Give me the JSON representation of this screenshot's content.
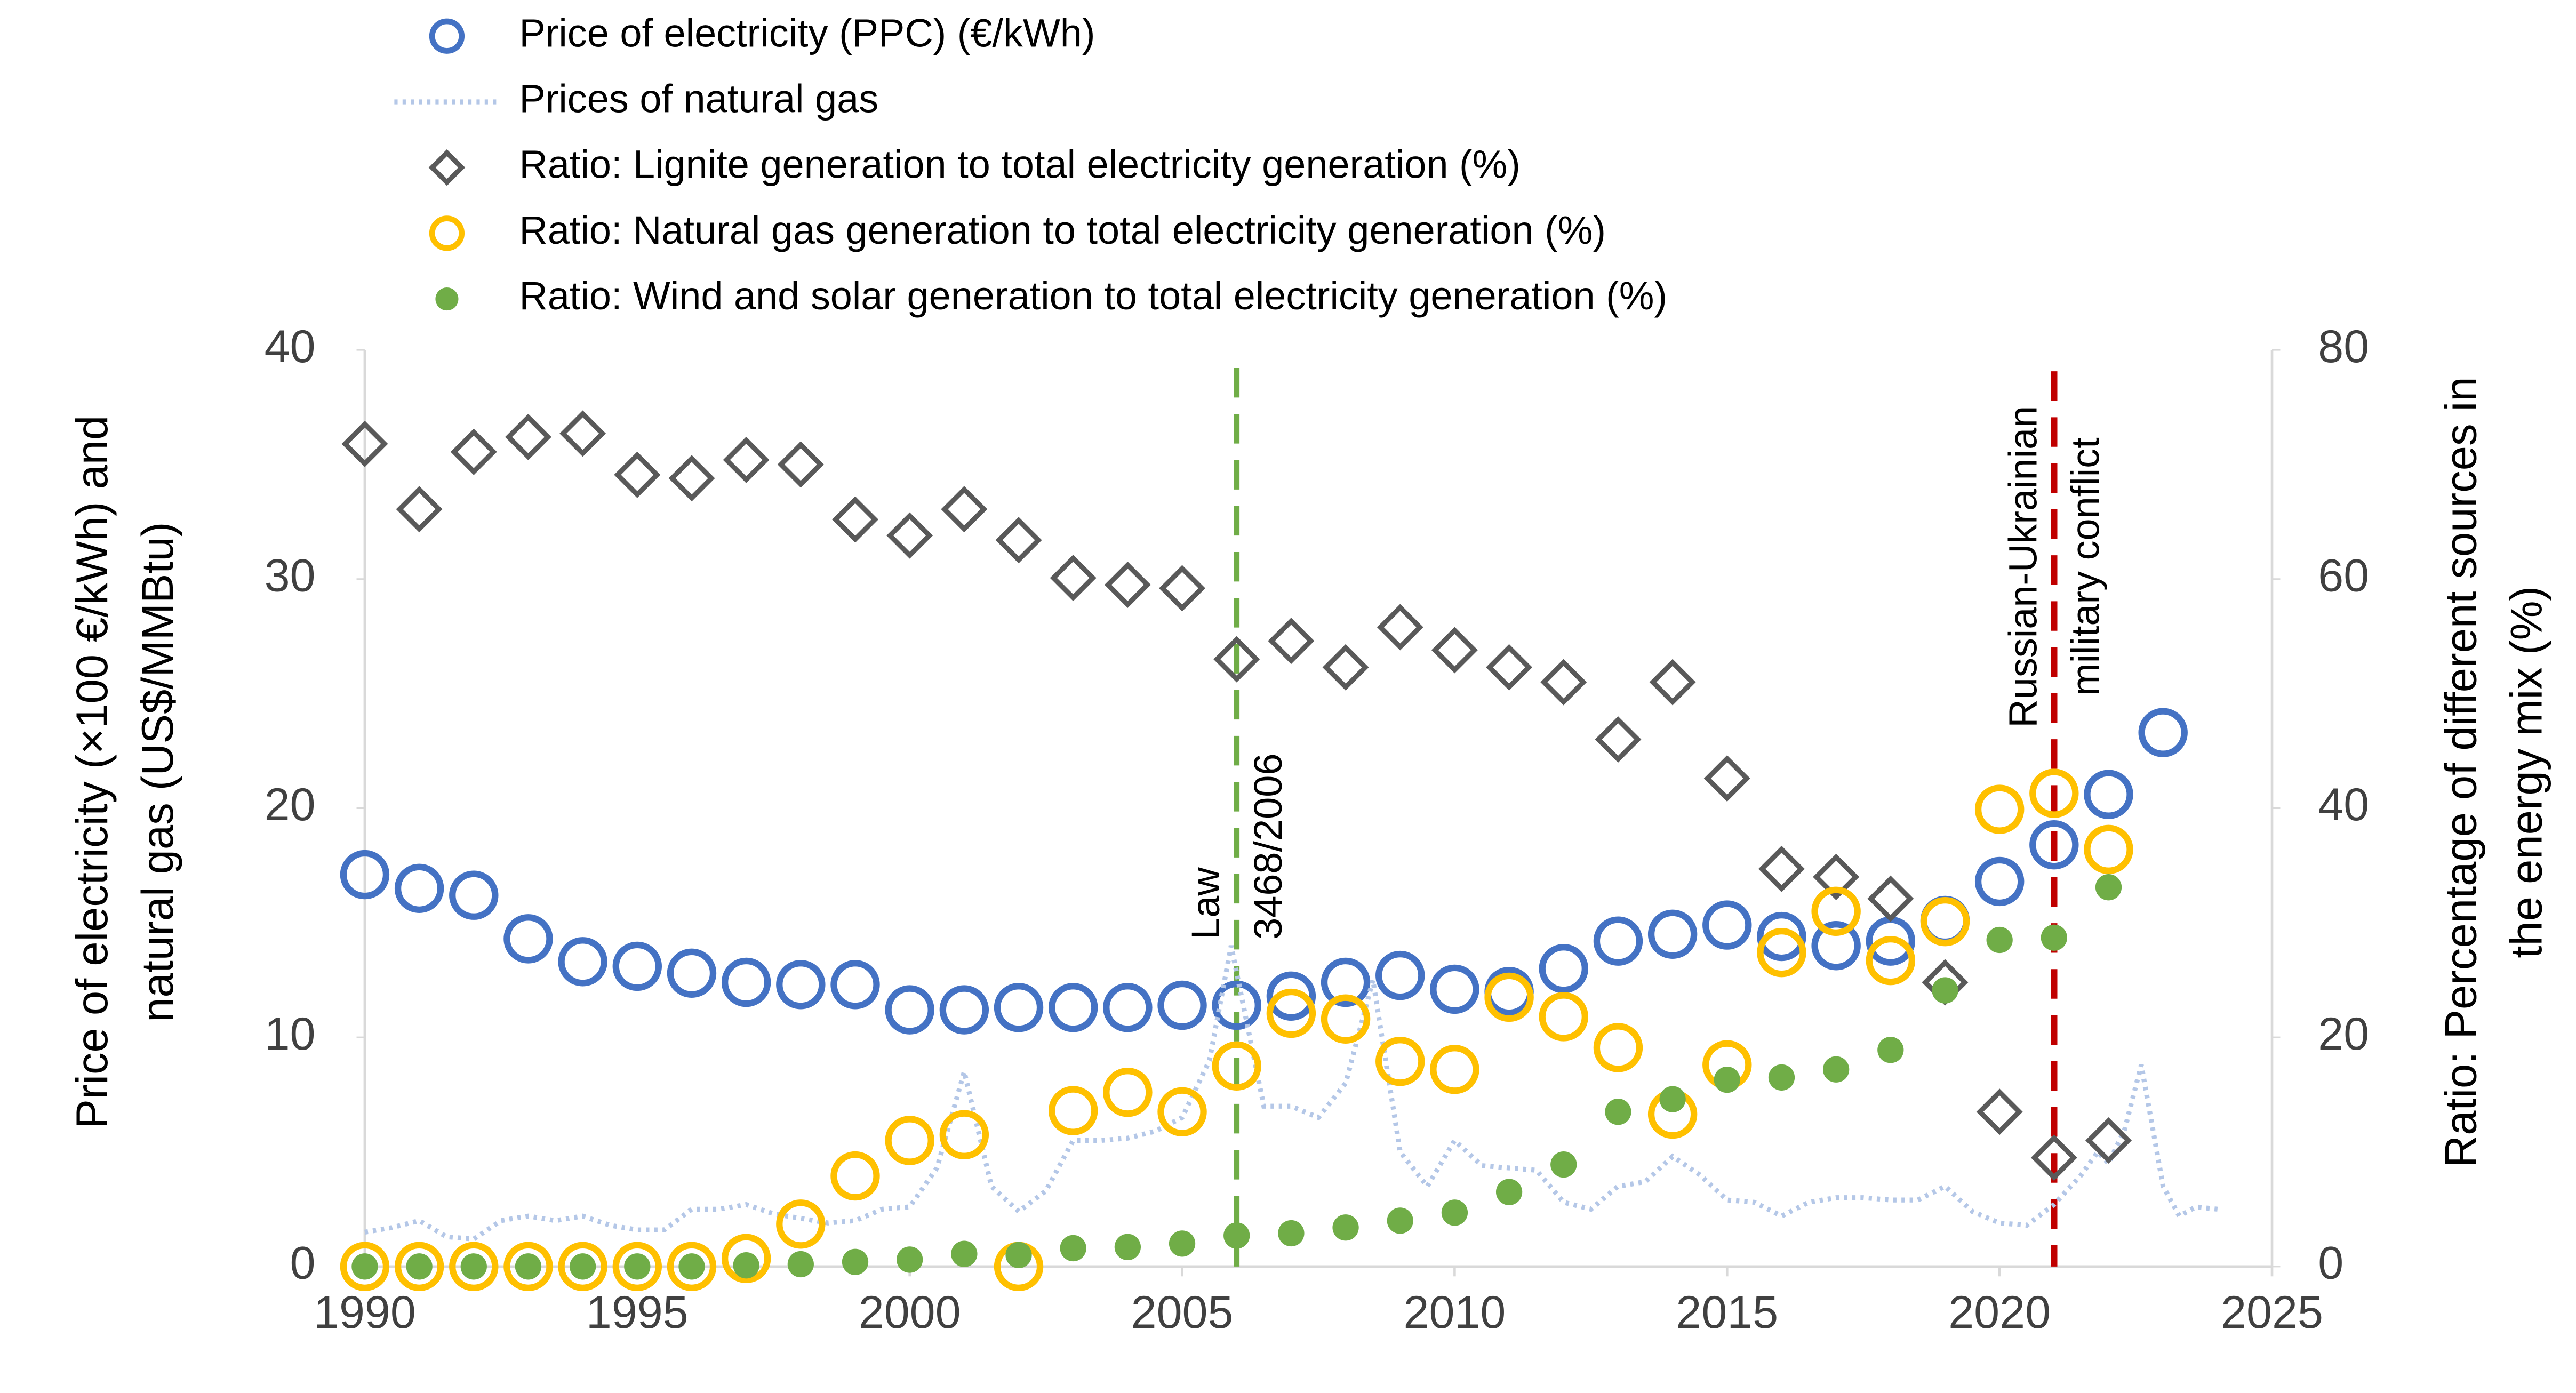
{
  "chart_data": {
    "type": "scatter",
    "x": [
      1990,
      1991,
      1992,
      1993,
      1994,
      1995,
      1996,
      1997,
      1998,
      1999,
      2000,
      2001,
      2002,
      2003,
      2004,
      2005,
      2006,
      2007,
      2008,
      2009,
      2010,
      2011,
      2012,
      2013,
      2014,
      2015,
      2016,
      2017,
      2018,
      2019,
      2020,
      2021,
      2022,
      2023
    ],
    "xlim": [
      1990,
      2025
    ],
    "xticks": [
      1990,
      1995,
      2000,
      2005,
      2010,
      2015,
      2020,
      2025
    ],
    "ylim": [
      0,
      40
    ],
    "yticks": [
      0,
      10,
      20,
      30,
      40
    ],
    "y2lim": [
      0,
      80
    ],
    "y2ticks": [
      0,
      20,
      40,
      60,
      80
    ],
    "grid": false,
    "ylabel": [
      "Price of electricity (×100 €/kWh) and",
      "natural gas (US$/MMBtu)"
    ],
    "y2label": [
      "Ratio: Percentage of different sources in",
      "the energy mix (%)"
    ],
    "series": [
      {
        "name": "Price of electricity (PPC) (€/kWh)",
        "color": "#4472c4",
        "marker": "circle-open",
        "values": [
          17.1,
          16.5,
          16.2,
          14.3,
          13.3,
          13.1,
          12.8,
          12.4,
          12.3,
          12.3,
          11.2,
          11.2,
          11.3,
          11.3,
          11.3,
          11.4,
          11.4,
          11.8,
          12.4,
          12.7,
          12.1,
          12.0,
          13.0,
          14.2,
          14.5,
          14.9,
          14.4,
          14.0,
          14.2,
          15.1,
          16.8,
          18.4,
          20.6,
          23.3
        ]
      },
      {
        "name": "Prices of natural gas",
        "color": "#b4c7e7",
        "marker": "line-dotted",
        "x": [
          1990,
          1990.5,
          1991,
          1991.5,
          1992,
          1992.5,
          1993,
          1993.5,
          1994,
          1994.5,
          1995,
          1995.5,
          1996,
          1996.5,
          1997,
          1997.5,
          1998,
          1998.5,
          1999,
          1999.5,
          2000,
          2000.5,
          2001,
          2001.5,
          2002,
          2002.5,
          2003,
          2003.5,
          2004,
          2004.5,
          2005,
          2005.5,
          2005.9,
          2006.5,
          2007,
          2007.5,
          2008,
          2008.5,
          2009,
          2009.5,
          2010,
          2010.5,
          2011,
          2011.5,
          2012,
          2012.5,
          2013,
          2013.5,
          2014,
          2014.5,
          2015,
          2015.5,
          2016,
          2016.5,
          2017,
          2017.5,
          2018,
          2018.5,
          2019,
          2019.5,
          2020,
          2020.5,
          2021,
          2021.5,
          2021.8,
          2022,
          2022.3,
          2022.6,
          2023,
          2023.3,
          2023.6,
          2024
        ],
        "values": [
          1.5,
          1.7,
          2.0,
          1.3,
          1.2,
          2.0,
          2.2,
          2.0,
          2.2,
          1.8,
          1.6,
          1.6,
          2.5,
          2.5,
          2.7,
          2.3,
          2.1,
          1.9,
          2.0,
          2.5,
          2.6,
          4.3,
          8.5,
          3.5,
          2.4,
          3.3,
          5.5,
          5.5,
          5.6,
          5.9,
          6.5,
          9.0,
          14.0,
          7.0,
          7.0,
          6.5,
          8.0,
          12.5,
          5.0,
          3.5,
          5.5,
          4.4,
          4.3,
          4.2,
          2.8,
          2.5,
          3.5,
          3.7,
          4.8,
          4.0,
          2.9,
          2.8,
          2.2,
          2.8,
          3.0,
          3.0,
          2.9,
          2.9,
          3.5,
          2.4,
          1.9,
          1.8,
          2.7,
          4.0,
          5.0,
          4.5,
          6.0,
          8.8,
          3.5,
          2.2,
          2.6,
          2.5
        ]
      },
      {
        "name": "Ratio: Lignite generation to total electricity generation (%)",
        "color": "#595959",
        "marker": "diamond-open",
        "axis": "y2",
        "values": [
          71.8,
          66.1,
          71.1,
          72.4,
          72.7,
          69.1,
          68.8,
          70.4,
          70.0,
          65.2,
          63.8,
          66.1,
          63.4,
          60.1,
          59.5,
          59.2,
          53.0,
          54.6,
          52.3,
          55.8,
          53.8,
          52.3,
          51.0,
          46.0,
          51.0,
          42.6,
          34.7,
          34.0,
          32.1,
          24.8,
          13.5,
          9.5,
          11.0,
          null
        ]
      },
      {
        "name": "Ratio: Natural gas generation to total electricity generation (%)",
        "color": "#ffc000",
        "marker": "circle-open",
        "axis": "y2",
        "values": [
          0,
          0,
          0,
          0,
          0,
          0,
          0,
          0.7,
          3.7,
          7.9,
          11.0,
          11.5,
          0,
          13.6,
          15.2,
          13.5,
          17.5,
          22.1,
          21.6,
          17.9,
          17.2,
          23.5,
          21.8,
          19.1,
          13.3,
          17.6,
          27.4,
          31.0,
          26.7,
          30.1,
          39.9,
          41.3,
          36.4,
          null
        ]
      },
      {
        "name": "Ratio: Wind and solar generation to total electricity generation (%)",
        "color": "#70ad47",
        "marker": "circle-filled",
        "axis": "y2",
        "values": [
          0,
          0,
          0,
          0,
          0,
          0,
          0,
          0.1,
          0.2,
          0.4,
          0.6,
          1.1,
          1.0,
          1.6,
          1.7,
          2.0,
          2.7,
          2.9,
          3.4,
          4.0,
          4.7,
          6.5,
          8.9,
          13.5,
          14.6,
          16.3,
          16.5,
          17.2,
          18.9,
          24.1,
          28.5,
          28.7,
          33.1,
          null
        ]
      }
    ],
    "annotations": [
      {
        "text": [
          "Law",
          "3468/2006"
        ],
        "x": 2006,
        "color": "#70ad47",
        "text_color": "#548235"
      },
      {
        "text": [
          "Russian-Ukrainian",
          "military conflict"
        ],
        "x": 2021,
        "color": "#c00000",
        "text_color": "#c00000"
      }
    ]
  }
}
